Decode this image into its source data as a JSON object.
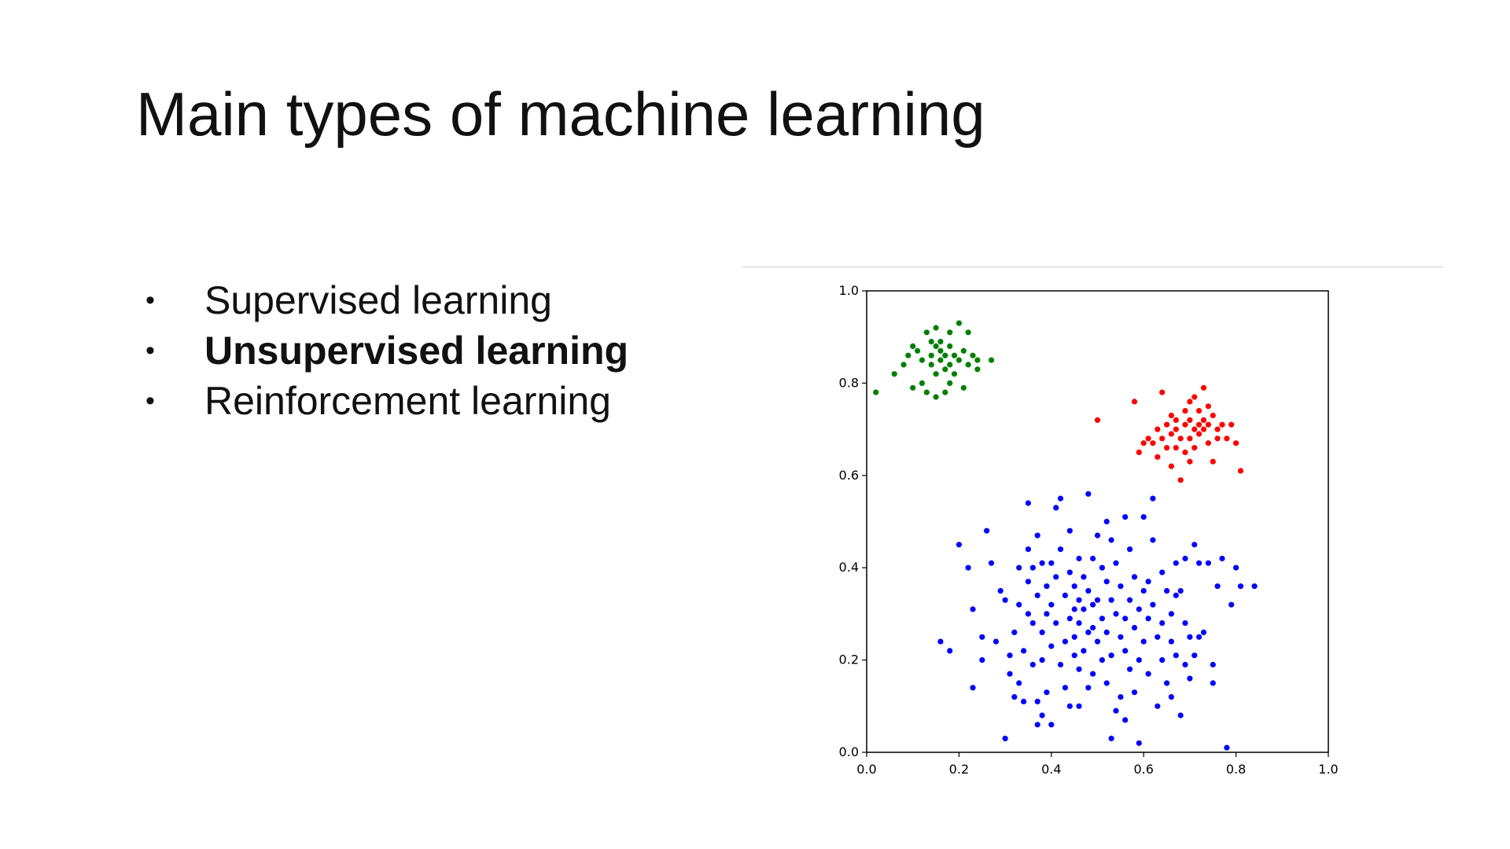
{
  "slide": {
    "title": "Main types of machine learning",
    "bullets": [
      {
        "text": "Supervised learning",
        "bold": false
      },
      {
        "text": "Unsupervised learning",
        "bold": true
      },
      {
        "text": "Reinforcement learning",
        "bold": false
      }
    ]
  },
  "chart_data": {
    "type": "scatter",
    "title": "",
    "xlabel": "",
    "ylabel": "",
    "xlim": [
      0.0,
      1.0
    ],
    "ylim": [
      0.0,
      1.0
    ],
    "grid": false,
    "xticks": [
      "0.0",
      "0.2",
      "0.4",
      "0.6",
      "0.8",
      "1.0"
    ],
    "yticks": [
      "0.0",
      "0.2",
      "0.4",
      "0.6",
      "0.8",
      "1.0"
    ],
    "series": [
      {
        "color": "#008000",
        "points": [
          [
            0.02,
            0.78
          ],
          [
            0.06,
            0.82
          ],
          [
            0.08,
            0.84
          ],
          [
            0.09,
            0.86
          ],
          [
            0.1,
            0.88
          ],
          [
            0.1,
            0.79
          ],
          [
            0.11,
            0.87
          ],
          [
            0.12,
            0.85
          ],
          [
            0.12,
            0.8
          ],
          [
            0.13,
            0.91
          ],
          [
            0.13,
            0.78
          ],
          [
            0.14,
            0.89
          ],
          [
            0.14,
            0.84
          ],
          [
            0.14,
            0.86
          ],
          [
            0.15,
            0.92
          ],
          [
            0.15,
            0.88
          ],
          [
            0.15,
            0.82
          ],
          [
            0.15,
            0.77
          ],
          [
            0.16,
            0.85
          ],
          [
            0.16,
            0.87
          ],
          [
            0.16,
            0.89
          ],
          [
            0.17,
            0.83
          ],
          [
            0.17,
            0.86
          ],
          [
            0.17,
            0.78
          ],
          [
            0.18,
            0.84
          ],
          [
            0.18,
            0.88
          ],
          [
            0.18,
            0.91
          ],
          [
            0.18,
            0.8
          ],
          [
            0.19,
            0.86
          ],
          [
            0.19,
            0.82
          ],
          [
            0.2,
            0.93
          ],
          [
            0.2,
            0.85
          ],
          [
            0.21,
            0.87
          ],
          [
            0.21,
            0.79
          ],
          [
            0.22,
            0.84
          ],
          [
            0.22,
            0.91
          ],
          [
            0.23,
            0.86
          ],
          [
            0.24,
            0.83
          ],
          [
            0.24,
            0.85
          ],
          [
            0.27,
            0.85
          ]
        ]
      },
      {
        "color": "#ff0000",
        "points": [
          [
            0.5,
            0.72
          ],
          [
            0.58,
            0.76
          ],
          [
            0.59,
            0.65
          ],
          [
            0.6,
            0.67
          ],
          [
            0.61,
            0.68
          ],
          [
            0.62,
            0.67
          ],
          [
            0.63,
            0.7
          ],
          [
            0.63,
            0.64
          ],
          [
            0.64,
            0.78
          ],
          [
            0.64,
            0.68
          ],
          [
            0.65,
            0.71
          ],
          [
            0.65,
            0.66
          ],
          [
            0.66,
            0.73
          ],
          [
            0.66,
            0.69
          ],
          [
            0.66,
            0.62
          ],
          [
            0.67,
            0.7
          ],
          [
            0.67,
            0.72
          ],
          [
            0.67,
            0.66
          ],
          [
            0.68,
            0.59
          ],
          [
            0.68,
            0.68
          ],
          [
            0.69,
            0.74
          ],
          [
            0.69,
            0.71
          ],
          [
            0.69,
            0.65
          ],
          [
            0.7,
            0.76
          ],
          [
            0.7,
            0.72
          ],
          [
            0.7,
            0.68
          ],
          [
            0.7,
            0.63
          ],
          [
            0.71,
            0.77
          ],
          [
            0.71,
            0.7
          ],
          [
            0.71,
            0.66
          ],
          [
            0.72,
            0.74
          ],
          [
            0.72,
            0.71
          ],
          [
            0.72,
            0.69
          ],
          [
            0.73,
            0.79
          ],
          [
            0.73,
            0.72
          ],
          [
            0.73,
            0.7
          ],
          [
            0.74,
            0.75
          ],
          [
            0.74,
            0.67
          ],
          [
            0.74,
            0.71
          ],
          [
            0.75,
            0.73
          ],
          [
            0.75,
            0.63
          ],
          [
            0.76,
            0.7
          ],
          [
            0.76,
            0.68
          ],
          [
            0.77,
            0.71
          ],
          [
            0.78,
            0.68
          ],
          [
            0.79,
            0.71
          ],
          [
            0.8,
            0.67
          ],
          [
            0.81,
            0.61
          ]
        ]
      },
      {
        "color": "#0000ff",
        "points": [
          [
            0.16,
            0.24
          ],
          [
            0.18,
            0.22
          ],
          [
            0.2,
            0.45
          ],
          [
            0.22,
            0.4
          ],
          [
            0.23,
            0.31
          ],
          [
            0.23,
            0.14
          ],
          [
            0.25,
            0.25
          ],
          [
            0.25,
            0.2
          ],
          [
            0.26,
            0.48
          ],
          [
            0.27,
            0.41
          ],
          [
            0.28,
            0.24
          ],
          [
            0.29,
            0.35
          ],
          [
            0.3,
            0.03
          ],
          [
            0.3,
            0.33
          ],
          [
            0.31,
            0.21
          ],
          [
            0.31,
            0.17
          ],
          [
            0.32,
            0.26
          ],
          [
            0.32,
            0.12
          ],
          [
            0.33,
            0.4
          ],
          [
            0.33,
            0.32
          ],
          [
            0.33,
            0.15
          ],
          [
            0.34,
            0.22
          ],
          [
            0.34,
            0.11
          ],
          [
            0.35,
            0.44
          ],
          [
            0.35,
            0.37
          ],
          [
            0.35,
            0.3
          ],
          [
            0.35,
            0.54
          ],
          [
            0.36,
            0.4
          ],
          [
            0.36,
            0.28
          ],
          [
            0.36,
            0.19
          ],
          [
            0.37,
            0.47
          ],
          [
            0.37,
            0.34
          ],
          [
            0.37,
            0.11
          ],
          [
            0.37,
            0.06
          ],
          [
            0.38,
            0.41
          ],
          [
            0.38,
            0.26
          ],
          [
            0.38,
            0.2
          ],
          [
            0.38,
            0.08
          ],
          [
            0.39,
            0.36
          ],
          [
            0.39,
            0.3
          ],
          [
            0.39,
            0.13
          ],
          [
            0.4,
            0.41
          ],
          [
            0.4,
            0.32
          ],
          [
            0.4,
            0.23
          ],
          [
            0.4,
            0.06
          ],
          [
            0.41,
            0.53
          ],
          [
            0.41,
            0.38
          ],
          [
            0.41,
            0.28
          ],
          [
            0.42,
            0.55
          ],
          [
            0.42,
            0.44
          ],
          [
            0.42,
            0.19
          ],
          [
            0.43,
            0.34
          ],
          [
            0.43,
            0.24
          ],
          [
            0.43,
            0.14
          ],
          [
            0.44,
            0.48
          ],
          [
            0.44,
            0.39
          ],
          [
            0.44,
            0.29
          ],
          [
            0.44,
            0.1
          ],
          [
            0.45,
            0.36
          ],
          [
            0.45,
            0.31
          ],
          [
            0.45,
            0.25
          ],
          [
            0.45,
            0.21
          ],
          [
            0.46,
            0.42
          ],
          [
            0.46,
            0.33
          ],
          [
            0.46,
            0.28
          ],
          [
            0.46,
            0.18
          ],
          [
            0.46,
            0.1
          ],
          [
            0.47,
            0.38
          ],
          [
            0.47,
            0.31
          ],
          [
            0.47,
            0.22
          ],
          [
            0.48,
            0.56
          ],
          [
            0.48,
            0.35
          ],
          [
            0.48,
            0.26
          ],
          [
            0.48,
            0.14
          ],
          [
            0.49,
            0.42
          ],
          [
            0.49,
            0.32
          ],
          [
            0.49,
            0.27
          ],
          [
            0.49,
            0.17
          ],
          [
            0.5,
            0.47
          ],
          [
            0.5,
            0.33
          ],
          [
            0.5,
            0.24
          ],
          [
            0.51,
            0.4
          ],
          [
            0.51,
            0.29
          ],
          [
            0.51,
            0.2
          ],
          [
            0.52,
            0.5
          ],
          [
            0.52,
            0.37
          ],
          [
            0.52,
            0.26
          ],
          [
            0.52,
            0.15
          ],
          [
            0.53,
            0.46
          ],
          [
            0.53,
            0.33
          ],
          [
            0.53,
            0.21
          ],
          [
            0.53,
            0.03
          ],
          [
            0.54,
            0.41
          ],
          [
            0.54,
            0.3
          ],
          [
            0.54,
            0.09
          ],
          [
            0.55,
            0.36
          ],
          [
            0.55,
            0.25
          ],
          [
            0.55,
            0.12
          ],
          [
            0.56,
            0.51
          ],
          [
            0.56,
            0.29
          ],
          [
            0.56,
            0.22
          ],
          [
            0.56,
            0.07
          ],
          [
            0.57,
            0.44
          ],
          [
            0.57,
            0.33
          ],
          [
            0.57,
            0.18
          ],
          [
            0.58,
            0.38
          ],
          [
            0.58,
            0.27
          ],
          [
            0.58,
            0.13
          ],
          [
            0.59,
            0.02
          ],
          [
            0.59,
            0.31
          ],
          [
            0.59,
            0.2
          ],
          [
            0.6,
            0.51
          ],
          [
            0.6,
            0.35
          ],
          [
            0.6,
            0.24
          ],
          [
            0.61,
            0.37
          ],
          [
            0.61,
            0.29
          ],
          [
            0.61,
            0.17
          ],
          [
            0.62,
            0.55
          ],
          [
            0.62,
            0.46
          ],
          [
            0.62,
            0.32
          ],
          [
            0.63,
            0.25
          ],
          [
            0.63,
            0.1
          ],
          [
            0.64,
            0.39
          ],
          [
            0.64,
            0.28
          ],
          [
            0.64,
            0.2
          ],
          [
            0.65,
            0.35
          ],
          [
            0.65,
            0.15
          ],
          [
            0.66,
            0.3
          ],
          [
            0.66,
            0.24
          ],
          [
            0.66,
            0.12
          ],
          [
            0.67,
            0.41
          ],
          [
            0.67,
            0.34
          ],
          [
            0.67,
            0.21
          ],
          [
            0.68,
            0.35
          ],
          [
            0.68,
            0.08
          ],
          [
            0.69,
            0.42
          ],
          [
            0.69,
            0.28
          ],
          [
            0.69,
            0.19
          ],
          [
            0.7,
            0.25
          ],
          [
            0.7,
            0.16
          ],
          [
            0.71,
            0.45
          ],
          [
            0.71,
            0.21
          ],
          [
            0.72,
            0.25
          ],
          [
            0.72,
            0.41
          ],
          [
            0.73,
            0.26
          ],
          [
            0.74,
            0.41
          ],
          [
            0.75,
            0.19
          ],
          [
            0.75,
            0.15
          ],
          [
            0.76,
            0.36
          ],
          [
            0.77,
            0.42
          ],
          [
            0.78,
            0.01
          ],
          [
            0.79,
            0.32
          ],
          [
            0.8,
            0.4
          ],
          [
            0.81,
            0.36
          ],
          [
            0.84,
            0.36
          ]
        ]
      }
    ]
  }
}
